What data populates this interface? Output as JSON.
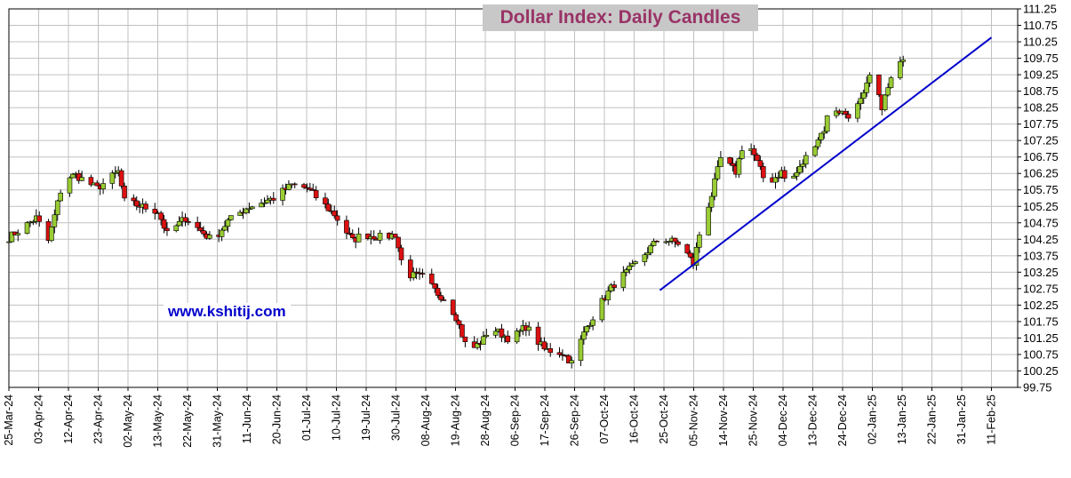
{
  "chart_data": {
    "type": "candlestick",
    "title": "Dollar Index: Daily Candles",
    "watermark": "www.kshitij.com",
    "y_ticks": [
      "111.25",
      "110.75",
      "110.25",
      "109.75",
      "109.25",
      "108.75",
      "108.25",
      "107.75",
      "107.25",
      "106.75",
      "106.25",
      "105.75",
      "105.25",
      "104.75",
      "104.25",
      "103.75",
      "103.25",
      "102.75",
      "102.25",
      "101.75",
      "101.25",
      "100.75",
      "100.25",
      "99.75"
    ],
    "ylim": [
      99.75,
      111.25
    ],
    "x_ticks": [
      "25-Mar-24",
      "03-Apr-24",
      "12-Apr-24",
      "23-Apr-24",
      "02-May-24",
      "13-May-24",
      "22-May-24",
      "31-May-24",
      "11-Jun-24",
      "20-Jun-24",
      "01-Jul-24",
      "10-Jul-24",
      "19-Jul-24",
      "30-Jul-24",
      "08-Aug-24",
      "19-Aug-24",
      "28-Aug-24",
      "06-Sep-24",
      "17-Sep-24",
      "26-Sep-24",
      "07-Oct-24",
      "16-Oct-24",
      "25-Oct-24",
      "05-Nov-24",
      "14-Nov-24",
      "25-Nov-24",
      "04-Dec-24",
      "13-Dec-24",
      "24-Dec-24",
      "02-Jan-25",
      "13-Jan-25",
      "22-Jan-25",
      "31-Jan-25",
      "11-Feb-25"
    ],
    "grid": true,
    "up_color": "#99cc33",
    "down_color": "#dd1111",
    "trendline": {
      "color": "#0000cc",
      "points": [
        {
          "date": "25-Oct-24",
          "value": 102.7
        },
        {
          "date": "11-Feb-25",
          "value": 110.38
        }
      ]
    },
    "closes": [
      {
        "date": "25-Mar-24",
        "value": 104.3
      },
      {
        "date": "03-Apr-24",
        "value": 104.9
      },
      {
        "date": "07-Apr-24",
        "value": 104.2
      },
      {
        "date": "12-Apr-24",
        "value": 106.1
      },
      {
        "date": "16-Apr-24",
        "value": 106.2
      },
      {
        "date": "23-Apr-24",
        "value": 105.8
      },
      {
        "date": "30-Apr-24",
        "value": 106.3
      },
      {
        "date": "02-May-24",
        "value": 105.4
      },
      {
        "date": "13-May-24",
        "value": 105.1
      },
      {
        "date": "16-May-24",
        "value": 104.4
      },
      {
        "date": "22-May-24",
        "value": 104.9
      },
      {
        "date": "31-May-24",
        "value": 104.2
      },
      {
        "date": "05-Jun-24",
        "value": 104.8
      },
      {
        "date": "11-Jun-24",
        "value": 105.2
      },
      {
        "date": "20-Jun-24",
        "value": 105.5
      },
      {
        "date": "26-Jun-24",
        "value": 105.9
      },
      {
        "date": "01-Jul-24",
        "value": 105.8
      },
      {
        "date": "10-Jul-24",
        "value": 105.0
      },
      {
        "date": "16-Jul-24",
        "value": 104.2
      },
      {
        "date": "19-Jul-24",
        "value": 104.4
      },
      {
        "date": "26-Jul-24",
        "value": 104.3
      },
      {
        "date": "30-Jul-24",
        "value": 104.4
      },
      {
        "date": "02-Aug-24",
        "value": 103.2
      },
      {
        "date": "08-Aug-24",
        "value": 103.1
      },
      {
        "date": "13-Aug-24",
        "value": 102.6
      },
      {
        "date": "16-Aug-24",
        "value": 102.4
      },
      {
        "date": "19-Aug-24",
        "value": 101.9
      },
      {
        "date": "23-Aug-24",
        "value": 100.8
      },
      {
        "date": "28-Aug-24",
        "value": 101.2
      },
      {
        "date": "30-Aug-24",
        "value": 101.6
      },
      {
        "date": "06-Sep-24",
        "value": 101.2
      },
      {
        "date": "11-Sep-24",
        "value": 101.6
      },
      {
        "date": "17-Sep-24",
        "value": 100.9
      },
      {
        "date": "23-Sep-24",
        "value": 100.8
      },
      {
        "date": "26-Sep-24",
        "value": 100.5
      },
      {
        "date": "01-Oct-24",
        "value": 101.6
      },
      {
        "date": "07-Oct-24",
        "value": 102.5
      },
      {
        "date": "10-Oct-24",
        "value": 102.9
      },
      {
        "date": "16-Oct-24",
        "value": 103.4
      },
      {
        "date": "21-Oct-24",
        "value": 103.9
      },
      {
        "date": "25-Oct-24",
        "value": 104.3
      },
      {
        "date": "01-Nov-24",
        "value": 104.1
      },
      {
        "date": "05-Nov-24",
        "value": 103.5
      },
      {
        "date": "07-Nov-24",
        "value": 104.4
      },
      {
        "date": "11-Nov-24",
        "value": 105.6
      },
      {
        "date": "14-Nov-24",
        "value": 106.7
      },
      {
        "date": "19-Nov-24",
        "value": 106.3
      },
      {
        "date": "22-Nov-24",
        "value": 107.4
      },
      {
        "date": "25-Nov-24",
        "value": 106.8
      },
      {
        "date": "29-Nov-24",
        "value": 105.9
      },
      {
        "date": "04-Dec-24",
        "value": 106.3
      },
      {
        "date": "06-Dec-24",
        "value": 105.9
      },
      {
        "date": "10-Dec-24",
        "value": 106.4
      },
      {
        "date": "13-Dec-24",
        "value": 106.9
      },
      {
        "date": "18-Dec-24",
        "value": 107.6
      },
      {
        "date": "20-Dec-24",
        "value": 108.3
      },
      {
        "date": "24-Dec-24",
        "value": 108.1
      },
      {
        "date": "27-Dec-24",
        "value": 108.0
      },
      {
        "date": "31-Dec-24",
        "value": 108.6
      },
      {
        "date": "02-Jan-25",
        "value": 109.2
      },
      {
        "date": "06-Jan-25",
        "value": 108.3
      },
      {
        "date": "09-Jan-25",
        "value": 109.1
      },
      {
        "date": "13-Jan-25",
        "value": 109.7
      }
    ]
  }
}
